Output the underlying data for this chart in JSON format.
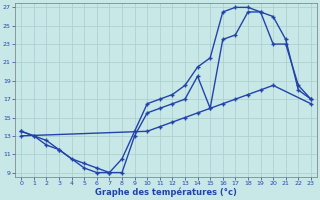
{
  "xlabel": "Graphe des températures (°c)",
  "xlim": [
    -0.5,
    23.5
  ],
  "ylim": [
    8.5,
    27.5
  ],
  "yticks": [
    9,
    11,
    13,
    15,
    17,
    19,
    21,
    23,
    25,
    27
  ],
  "xticks": [
    0,
    1,
    2,
    3,
    4,
    5,
    6,
    7,
    8,
    9,
    10,
    11,
    12,
    13,
    14,
    15,
    16,
    17,
    18,
    19,
    20,
    21,
    22,
    23
  ],
  "background_color": "#c8e8e8",
  "line_color": "#2244aa",
  "grid_color": "#aacccc",
  "curve1_x": [
    0,
    1,
    2,
    3,
    4,
    5,
    6,
    7,
    8,
    9,
    10,
    11,
    12,
    13,
    14,
    15,
    16,
    17,
    18,
    19,
    20,
    21,
    22,
    23
  ],
  "curve1_y": [
    13.5,
    13.0,
    12.0,
    11.5,
    10.5,
    10.0,
    9.5,
    9.0,
    10.5,
    13.5,
    16.5,
    17.0,
    17.5,
    18.5,
    20.5,
    21.5,
    26.5,
    27.0,
    27.0,
    26.5,
    26.0,
    23.5,
    18.0,
    17.0
  ],
  "curve2_x": [
    0,
    1,
    2,
    3,
    5,
    6,
    7,
    8,
    9,
    10,
    11,
    12,
    13,
    14,
    15,
    16,
    17,
    18,
    19,
    20,
    21,
    22,
    23
  ],
  "curve2_y": [
    13.5,
    13.0,
    12.5,
    11.5,
    9.5,
    9.0,
    9.0,
    9.0,
    13.0,
    15.5,
    16.0,
    16.5,
    17.0,
    19.5,
    16.0,
    23.5,
    24.0,
    26.5,
    26.5,
    23.0,
    23.0,
    18.5,
    17.0
  ],
  "curve3_x": [
    0,
    10,
    11,
    12,
    13,
    14,
    15,
    16,
    17,
    18,
    19,
    20,
    23
  ],
  "curve3_y": [
    13.0,
    13.5,
    14.0,
    14.5,
    15.0,
    15.5,
    16.0,
    16.5,
    17.0,
    17.5,
    18.0,
    18.5,
    16.5
  ]
}
